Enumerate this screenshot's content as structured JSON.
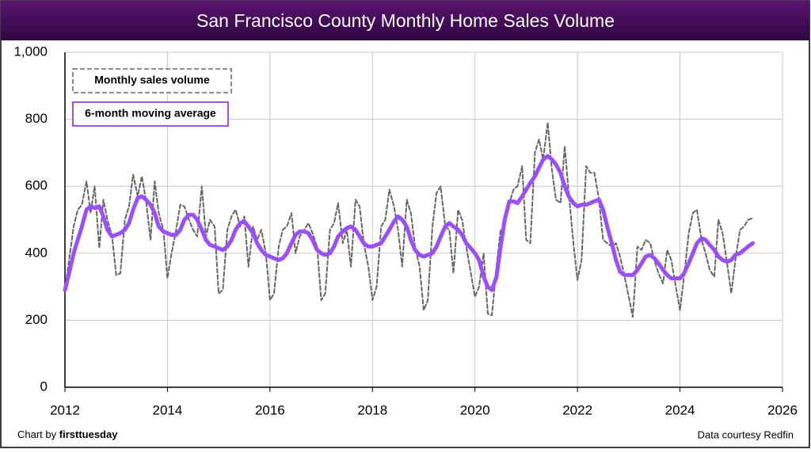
{
  "chart_data": {
    "type": "line",
    "title": "San Francisco County Monthly Home Sales Volume",
    "credit_prefix": "Chart by",
    "credit_name": "firsttuesday",
    "source": "Data courtesy Redfin",
    "xlim": [
      2012,
      2026
    ],
    "xticks": [
      2012,
      2014,
      2016,
      2018,
      2020,
      2022,
      2024,
      2026
    ],
    "ylim": [
      0,
      1000
    ],
    "yticks": [
      0,
      200,
      400,
      600,
      800,
      {
        "value": 1000,
        "label": "1,000"
      }
    ],
    "grid": true,
    "legend": "upper left",
    "x": [
      2012,
      2012.08,
      2012.17,
      2012.25,
      2012.33,
      2012.42,
      2012.5,
      2012.58,
      2012.67,
      2012.75,
      2012.83,
      2012.92,
      2013,
      2013.08,
      2013.17,
      2013.25,
      2013.33,
      2013.42,
      2013.5,
      2013.58,
      2013.67,
      2013.75,
      2013.83,
      2013.92,
      2014,
      2014.08,
      2014.17,
      2014.25,
      2014.33,
      2014.42,
      2014.5,
      2014.58,
      2014.67,
      2014.75,
      2014.83,
      2014.92,
      2015,
      2015.08,
      2015.17,
      2015.25,
      2015.33,
      2015.42,
      2015.5,
      2015.58,
      2015.67,
      2015.75,
      2015.83,
      2015.92,
      2016,
      2016.08,
      2016.17,
      2016.25,
      2016.33,
      2016.42,
      2016.5,
      2016.58,
      2016.67,
      2016.75,
      2016.83,
      2016.92,
      2017,
      2017.08,
      2017.17,
      2017.25,
      2017.33,
      2017.42,
      2017.5,
      2017.58,
      2017.67,
      2017.75,
      2017.83,
      2017.92,
      2018,
      2018.08,
      2018.17,
      2018.25,
      2018.33,
      2018.42,
      2018.5,
      2018.58,
      2018.67,
      2018.75,
      2018.83,
      2018.92,
      2019,
      2019.08,
      2019.17,
      2019.25,
      2019.33,
      2019.42,
      2019.5,
      2019.58,
      2019.67,
      2019.75,
      2019.83,
      2019.92,
      2020,
      2020.08,
      2020.17,
      2020.25,
      2020.33,
      2020.42,
      2020.5,
      2020.58,
      2020.67,
      2020.75,
      2020.83,
      2020.92,
      2021,
      2021.08,
      2021.17,
      2021.25,
      2021.33,
      2021.42,
      2021.5,
      2021.58,
      2021.67,
      2021.75,
      2021.83,
      2021.92,
      2022,
      2022.08,
      2022.17,
      2022.25,
      2022.33,
      2022.42,
      2022.5,
      2022.58,
      2022.67,
      2022.75,
      2022.83,
      2022.92,
      2023,
      2023.08,
      2023.17,
      2023.25,
      2023.33,
      2023.42,
      2023.5,
      2023.58,
      2023.67,
      2023.75,
      2023.83,
      2023.92,
      2024,
      2024.08,
      2024.17,
      2024.25,
      2024.33,
      2024.42,
      2024.5,
      2024.58,
      2024.67,
      2024.75,
      2024.83,
      2024.92,
      2025,
      2025.08,
      2025.17,
      2025.25,
      2025.33,
      2025.42
    ],
    "series": [
      {
        "name": "Monthly sales volume",
        "color": "#666666",
        "dashed": true,
        "values": [
          290,
          380,
          480,
          530,
          545,
          615,
          520,
          600,
          415,
          560,
          500,
          450,
          335,
          340,
          500,
          540,
          635,
          570,
          630,
          560,
          440,
          615,
          520,
          470,
          325,
          400,
          470,
          545,
          540,
          500,
          470,
          450,
          600,
          450,
          500,
          480,
          280,
          290,
          470,
          510,
          530,
          480,
          510,
          360,
          480,
          440,
          470,
          400,
          260,
          280,
          420,
          470,
          480,
          520,
          400,
          450,
          470,
          490,
          460,
          420,
          260,
          280,
          470,
          490,
          550,
          430,
          470,
          360,
          560,
          540,
          430,
          360,
          260,
          300,
          480,
          500,
          590,
          540,
          470,
          360,
          560,
          520,
          420,
          360,
          230,
          260,
          480,
          580,
          600,
          480,
          470,
          340,
          530,
          500,
          420,
          340,
          270,
          300,
          400,
          220,
          215,
          360,
          470,
          480,
          550,
          590,
          600,
          660,
          440,
          430,
          700,
          740,
          680,
          790,
          650,
          560,
          550,
          720,
          580,
          430,
          320,
          380,
          660,
          640,
          640,
          560,
          440,
          430,
          420,
          430,
          390,
          330,
          270,
          210,
          420,
          410,
          440,
          430,
          380,
          340,
          310,
          410,
          380,
          300,
          230,
          330,
          460,
          520,
          530,
          440,
          400,
          350,
          330,
          500,
          460,
          370,
          280,
          380,
          470,
          480,
          500,
          505
        ]
      },
      {
        "name": "6-month moving average",
        "color": "#9b4dff",
        "dashed": false,
        "values": [
          290,
          340,
          400,
          440,
          480,
          530,
          540,
          535,
          540,
          510,
          470,
          450,
          455,
          460,
          470,
          490,
          530,
          565,
          570,
          560,
          545,
          520,
          480,
          465,
          460,
          455,
          455,
          470,
          500,
          515,
          515,
          500,
          470,
          440,
          425,
          420,
          415,
          410,
          420,
          440,
          470,
          490,
          495,
          480,
          460,
          430,
          410,
          395,
          390,
          385,
          380,
          385,
          400,
          430,
          455,
          465,
          465,
          460,
          440,
          410,
          400,
          395,
          400,
          420,
          450,
          465,
          475,
          480,
          470,
          450,
          430,
          420,
          420,
          425,
          430,
          450,
          470,
          495,
          510,
          500,
          480,
          440,
          410,
          395,
          390,
          395,
          400,
          420,
          450,
          480,
          490,
          480,
          470,
          455,
          430,
          415,
          400,
          380,
          330,
          300,
          290,
          330,
          420,
          500,
          555,
          555,
          550,
          570,
          590,
          610,
          630,
          655,
          680,
          690,
          680,
          665,
          640,
          600,
          570,
          550,
          540,
          545,
          545,
          550,
          555,
          560,
          530,
          480,
          430,
          380,
          345,
          335,
          335,
          335,
          350,
          370,
          390,
          395,
          385,
          370,
          350,
          335,
          325,
          325,
          325,
          340,
          370,
          400,
          430,
          445,
          440,
          425,
          410,
          390,
          380,
          375,
          380,
          395,
          400,
          410,
          420,
          430
        ]
      }
    ]
  }
}
